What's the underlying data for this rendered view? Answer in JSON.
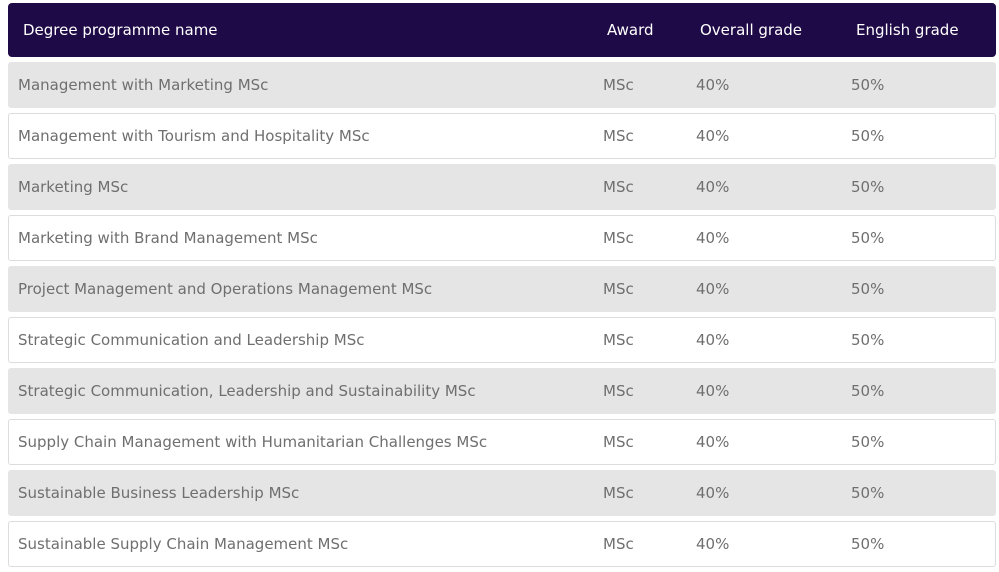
{
  "table": {
    "headers": {
      "name": "Degree programme name",
      "award": "Award",
      "overall": "Overall grade",
      "english": "English grade"
    },
    "rows": [
      {
        "name": "Management with Marketing MSc",
        "award": "MSc",
        "overall": "40%",
        "english": "50%"
      },
      {
        "name": "Management with Tourism and Hospitality MSc",
        "award": "MSc",
        "overall": "40%",
        "english": "50%"
      },
      {
        "name": "Marketing MSc",
        "award": "MSc",
        "overall": "40%",
        "english": "50%"
      },
      {
        "name": "Marketing with Brand Management MSc",
        "award": "MSc",
        "overall": "40%",
        "english": "50%"
      },
      {
        "name": "Project Management and Operations Management MSc",
        "award": "MSc",
        "overall": "40%",
        "english": "50%"
      },
      {
        "name": "Strategic Communication and Leadership MSc",
        "award": "MSc",
        "overall": "40%",
        "english": "50%"
      },
      {
        "name": "Strategic Communication, Leadership and Sustainability MSc",
        "award": "MSc",
        "overall": "40%",
        "english": "50%"
      },
      {
        "name": "Supply Chain Management with Humanitarian Challenges MSc",
        "award": "MSc",
        "overall": "40%",
        "english": "50%"
      },
      {
        "name": "Sustainable Business Leadership MSc",
        "award": "MSc",
        "overall": "40%",
        "english": "50%"
      },
      {
        "name": "Sustainable Supply Chain Management MSc",
        "award": "MSc",
        "overall": "40%",
        "english": "50%"
      }
    ]
  },
  "colors": {
    "header_bg": "#1e0a46",
    "header_text": "#ffffff",
    "row_shaded": "#e5e5e5",
    "row_plain": "#ffffff",
    "row_text": "#6f6f6f"
  }
}
